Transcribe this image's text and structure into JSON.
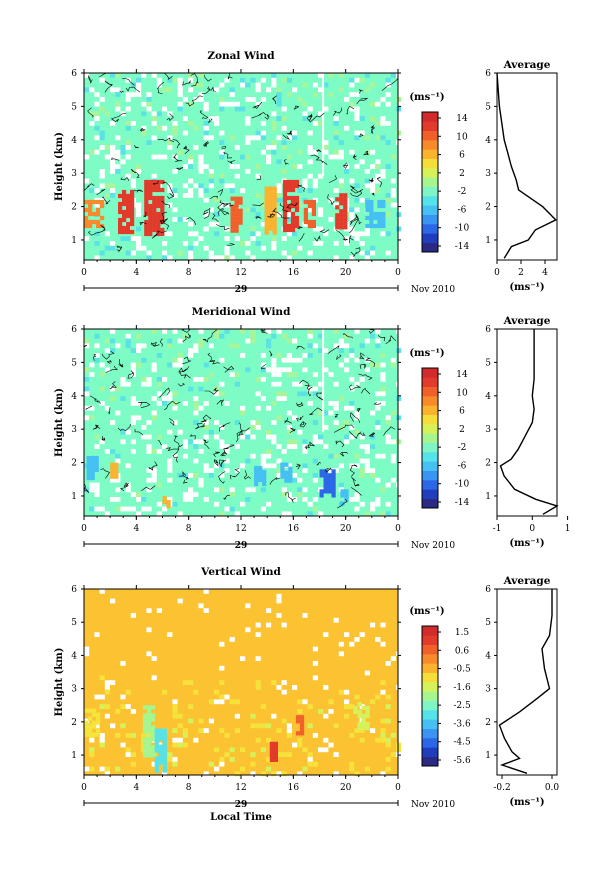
{
  "chart_data": [
    {
      "type": "heatmap",
      "title": "Zonal Wind",
      "ylabel": "Height (km)",
      "xticks": [
        "0",
        "4",
        "8",
        "12",
        "16",
        "20",
        "0"
      ],
      "yticks": [
        "1",
        "2",
        "3",
        "4",
        "5",
        "6"
      ],
      "ylim": [
        0.4,
        6
      ],
      "xlim": [
        0,
        24
      ],
      "date_label": "29",
      "month_label": "Nov 2010",
      "colorbar": {
        "unit": "(ms⁻¹)",
        "ticks": [
          "14",
          "10",
          "6",
          "2",
          "-2",
          "-6",
          "-10",
          "-14"
        ],
        "colors": [
          "#2a2a86",
          "#1f3dbd",
          "#2b67e6",
          "#3a95f0",
          "#46c0f2",
          "#55e2e8",
          "#7ff5c7",
          "#a6f58f",
          "#d6f25a",
          "#f5de3a",
          "#fbb22e",
          "#f78a2a",
          "#f0602a",
          "#e23a2b",
          "#d02c2c"
        ]
      },
      "background_value": "#7dfcc6",
      "patches": [
        {
          "t0": 0.0,
          "t1": 1.5,
          "h0": 1.4,
          "h1": 2.2,
          "v": 8
        },
        {
          "t0": 2.6,
          "t1": 3.6,
          "h0": 1.3,
          "h1": 2.5,
          "v": 12
        },
        {
          "t0": 4.6,
          "t1": 6.0,
          "h0": 1.2,
          "h1": 2.8,
          "v": 12
        },
        {
          "t0": 11.2,
          "t1": 11.9,
          "h0": 1.3,
          "h1": 2.3,
          "v": 10
        },
        {
          "t0": 13.8,
          "t1": 14.5,
          "h0": 1.2,
          "h1": 2.6,
          "v": 6
        },
        {
          "t0": 15.2,
          "t1": 16.4,
          "h0": 1.3,
          "h1": 2.8,
          "v": 12
        },
        {
          "t0": 16.8,
          "t1": 17.7,
          "h0": 1.4,
          "h1": 2.2,
          "v": 10
        },
        {
          "t0": 19.2,
          "t1": 20.0,
          "h0": 1.4,
          "h1": 2.4,
          "v": 12
        },
        {
          "t0": 21.5,
          "t1": 23.0,
          "h0": 1.4,
          "h1": 2.2,
          "v": -6
        }
      ],
      "profile": {
        "title": "Average",
        "xlabel": "(ms⁻¹)",
        "xticks": [
          "0",
          "2",
          "4"
        ],
        "xlim": [
          0,
          5
        ],
        "values": [
          {
            "h": 0.45,
            "x": 0.6
          },
          {
            "h": 0.8,
            "x": 1.2
          },
          {
            "h": 1.0,
            "x": 2.6
          },
          {
            "h": 1.3,
            "x": 3.2
          },
          {
            "h": 1.6,
            "x": 4.9
          },
          {
            "h": 2.0,
            "x": 3.8
          },
          {
            "h": 2.2,
            "x": 3.0
          },
          {
            "h": 2.5,
            "x": 1.8
          },
          {
            "h": 2.8,
            "x": 1.6
          },
          {
            "h": 3.2,
            "x": 1.2
          },
          {
            "h": 3.6,
            "x": 0.9
          },
          {
            "h": 4.0,
            "x": 0.6
          },
          {
            "h": 4.5,
            "x": 0.4
          },
          {
            "h": 5.0,
            "x": 0.2
          },
          {
            "h": 6.0,
            "x": 0.0
          }
        ]
      }
    },
    {
      "type": "heatmap",
      "title": "Meridional Wind",
      "ylabel": "Height (km)",
      "xticks": [
        "0",
        "4",
        "8",
        "12",
        "16",
        "20",
        "0"
      ],
      "yticks": [
        "1",
        "2",
        "3",
        "4",
        "5",
        "6"
      ],
      "ylim": [
        0.4,
        6
      ],
      "xlim": [
        0,
        24
      ],
      "date_label": "29",
      "month_label": "Nov 2010",
      "colorbar": {
        "unit": "(ms⁻¹)",
        "ticks": [
          "14",
          "10",
          "6",
          "2",
          "-2",
          "-6",
          "-10",
          "-14"
        ],
        "colors": [
          "#2a2a86",
          "#1f3dbd",
          "#2b67e6",
          "#3a95f0",
          "#46c0f2",
          "#55e2e8",
          "#7ff5c7",
          "#a6f58f",
          "#d6f25a",
          "#f5de3a",
          "#fbb22e",
          "#f78a2a",
          "#f0602a",
          "#e23a2b",
          "#d02c2c"
        ]
      },
      "background_value": "#7dfcc6",
      "patches": [
        {
          "t0": 0.2,
          "t1": 0.9,
          "h0": 1.6,
          "h1": 2.2,
          "v": -6
        },
        {
          "t0": 2.0,
          "t1": 2.6,
          "h0": 1.6,
          "h1": 2.0,
          "v": 6
        },
        {
          "t0": 6.0,
          "t1": 6.6,
          "h0": 0.7,
          "h1": 1.0,
          "v": 6
        },
        {
          "t0": 13.0,
          "t1": 13.7,
          "h0": 1.4,
          "h1": 1.9,
          "v": -6
        },
        {
          "t0": 15.0,
          "t1": 15.8,
          "h0": 1.5,
          "h1": 2.0,
          "v": -6
        },
        {
          "t0": 18.0,
          "t1": 19.0,
          "h0": 1.0,
          "h1": 1.8,
          "v": -10
        },
        {
          "t0": 19.6,
          "t1": 20.1,
          "h0": 0.8,
          "h1": 1.2,
          "v": -6
        }
      ],
      "profile": {
        "title": "Average",
        "xlabel": "(ms⁻¹)",
        "xticks": [
          "-1",
          "0",
          "1"
        ],
        "xlim": [
          -1,
          0.7
        ],
        "values": [
          {
            "h": 0.45,
            "x": 0.3
          },
          {
            "h": 0.7,
            "x": 0.7
          },
          {
            "h": 0.9,
            "x": 0.1
          },
          {
            "h": 1.2,
            "x": -0.5
          },
          {
            "h": 1.6,
            "x": -0.8
          },
          {
            "h": 1.9,
            "x": -0.9
          },
          {
            "h": 2.1,
            "x": -0.6
          },
          {
            "h": 2.4,
            "x": -0.4
          },
          {
            "h": 2.8,
            "x": -0.2
          },
          {
            "h": 3.2,
            "x": 0.0
          },
          {
            "h": 3.6,
            "x": 0.05
          },
          {
            "h": 4.0,
            "x": 0.0
          },
          {
            "h": 4.5,
            "x": 0.05
          },
          {
            "h": 5.0,
            "x": 0.05
          },
          {
            "h": 6.0,
            "x": 0.05
          }
        ]
      }
    },
    {
      "type": "heatmap",
      "title": "Vertical Wind",
      "ylabel": "Height (km)",
      "xlabel": "Local Time",
      "xticks": [
        "0",
        "4",
        "8",
        "12",
        "16",
        "20",
        "0"
      ],
      "yticks": [
        "1",
        "2",
        "3",
        "4",
        "5",
        "6"
      ],
      "ylim": [
        0.4,
        6
      ],
      "xlim": [
        0,
        24
      ],
      "date_label": "29",
      "month_label": "Nov 2010",
      "colorbar": {
        "unit": "(ms⁻¹)",
        "ticks": [
          "1.5",
          "0.6",
          "-0.5",
          "-1.6",
          "-2.5",
          "-3.6",
          "-4.5",
          "-5.6"
        ],
        "colors": [
          "#2a2a86",
          "#1f3dbd",
          "#2b67e6",
          "#3a95f0",
          "#46c0f2",
          "#55e2e8",
          "#7ff5c7",
          "#a6f58f",
          "#d6f25a",
          "#f5de3a",
          "#fbb22e",
          "#f78a2a",
          "#f0602a",
          "#e23a2b",
          "#d02c2c"
        ]
      },
      "background_value": "#fbc232",
      "patches": [
        {
          "t0": 0.0,
          "t1": 1.2,
          "h0": 1.6,
          "h1": 2.4,
          "v": "#f5e43a"
        },
        {
          "t0": 4.5,
          "t1": 5.2,
          "h0": 1.0,
          "h1": 2.5,
          "v": "#a6f58f"
        },
        {
          "t0": 5.4,
          "t1": 6.2,
          "h0": 0.5,
          "h1": 1.8,
          "v": "#55e2e8"
        },
        {
          "t0": 14.2,
          "t1": 14.8,
          "h0": 0.8,
          "h1": 1.4,
          "v": "#e23a2b"
        },
        {
          "t0": 16.2,
          "t1": 16.8,
          "h0": 1.6,
          "h1": 2.2,
          "v": "#f0602a"
        },
        {
          "t0": 20.6,
          "t1": 21.6,
          "h0": 1.8,
          "h1": 2.6,
          "v": "#d6f25a"
        }
      ],
      "profile": {
        "title": "Average",
        "xlabel": "(ms⁻¹)",
        "xticks": [
          "-0.2",
          "0.0"
        ],
        "xlim": [
          -0.22,
          0.02
        ],
        "values": [
          {
            "h": 0.45,
            "x": -0.1
          },
          {
            "h": 0.7,
            "x": -0.2
          },
          {
            "h": 0.9,
            "x": -0.13
          },
          {
            "h": 1.1,
            "x": -0.16
          },
          {
            "h": 1.5,
            "x": -0.19
          },
          {
            "h": 1.9,
            "x": -0.21
          },
          {
            "h": 2.3,
            "x": -0.13
          },
          {
            "h": 2.7,
            "x": -0.06
          },
          {
            "h": 3.0,
            "x": -0.01
          },
          {
            "h": 3.6,
            "x": -0.03
          },
          {
            "h": 4.2,
            "x": -0.04
          },
          {
            "h": 4.6,
            "x": -0.01
          },
          {
            "h": 5.2,
            "x": 0.0
          },
          {
            "h": 6.0,
            "x": 0.0
          }
        ]
      }
    }
  ]
}
